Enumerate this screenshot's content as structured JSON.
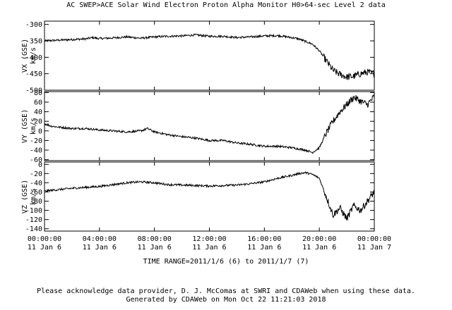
{
  "title": "AC  SWEP>ACE Solar Wind Electron Proton Alpha Monitor  H0>64-sec Level 2 data",
  "time_range": "TIME RANGE=2011/1/6 (6) to 2011/1/7 (7)",
  "acknowledgement": "Please acknowledge data provider, D. J. McComas at SWRI and CDAWeb when using these data.",
  "generated": "Generated by CDAWeb on Mon Oct 22 11:21:03 2018",
  "chart_data": [
    {
      "type": "line",
      "ylabel": "VX (GSE)",
      "yunit": "km/s",
      "ylim": [
        -500,
        -290
      ],
      "inverted": true,
      "yticks": [
        -300,
        -350,
        -400,
        -450,
        -500
      ],
      "ytick_labels": [
        "-300",
        "-350",
        "-400",
        "-450",
        "-500"
      ],
      "series": [
        {
          "x": [
            0,
            1,
            2,
            3,
            3.5,
            4,
            5,
            6,
            7,
            8,
            9,
            10,
            11,
            12,
            13,
            14,
            15,
            16,
            17,
            18,
            18.5,
            19,
            19.5,
            20,
            20.5,
            21,
            21.5,
            22,
            22.5,
            23,
            23.5,
            24
          ],
          "y": [
            -350,
            -348,
            -346,
            -344,
            -340,
            -343,
            -341,
            -338,
            -342,
            -338,
            -336,
            -335,
            -332,
            -336,
            -336,
            -340,
            -338,
            -335,
            -334,
            -340,
            -344,
            -352,
            -360,
            -380,
            -410,
            -440,
            -452,
            -460,
            -458,
            -450,
            -445,
            -450
          ]
        }
      ]
    },
    {
      "type": "line",
      "ylabel": "VY (GSE)",
      "yunit": "km/s",
      "ylim": [
        -62,
        82
      ],
      "inverted": false,
      "yticks": [
        80,
        60,
        40,
        20,
        0,
        -20,
        -40,
        -60
      ],
      "ytick_labels": [
        "80",
        "60",
        "40",
        "20",
        "0",
        "-20",
        "-40",
        "-60"
      ],
      "series": [
        {
          "x": [
            0,
            0.5,
            1,
            2,
            3,
            4,
            5,
            6,
            7,
            7.5,
            8,
            9,
            10,
            11,
            12,
            13,
            14,
            15,
            16,
            17,
            18,
            19,
            19.5,
            20,
            20.5,
            21,
            21.5,
            22,
            22.5,
            23,
            23.5,
            24
          ],
          "y": [
            15,
            10,
            8,
            5,
            5,
            2,
            0,
            -2,
            0,
            5,
            -2,
            -8,
            -12,
            -15,
            -20,
            -20,
            -25,
            -28,
            -32,
            -32,
            -35,
            -40,
            -45,
            -35,
            -5,
            20,
            40,
            55,
            70,
            62,
            55,
            72
          ]
        }
      ]
    },
    {
      "type": "line",
      "ylabel": "VZ (GSE)",
      "yunit": "km/s",
      "ylim": [
        -145,
        5
      ],
      "inverted": false,
      "yticks": [
        0,
        -20,
        -40,
        -60,
        -80,
        -100,
        -120,
        -140
      ],
      "ytick_labels": [
        "0",
        "-20",
        "-40",
        "-60",
        "-80",
        "-100",
        "-120",
        "-140"
      ],
      "series": [
        {
          "x": [
            0,
            1,
            2,
            3,
            4,
            5,
            6,
            7,
            8,
            9,
            10,
            11,
            12,
            13,
            14,
            15,
            16,
            17,
            18,
            18.5,
            19,
            19.5,
            20,
            20.5,
            21,
            21.5,
            22,
            22.5,
            23,
            23.5,
            24
          ],
          "y": [
            -58,
            -55,
            -52,
            -50,
            -48,
            -44,
            -40,
            -38,
            -40,
            -44,
            -45,
            -46,
            -47,
            -46,
            -45,
            -42,
            -38,
            -30,
            -24,
            -20,
            -18,
            -22,
            -30,
            -70,
            -110,
            -95,
            -118,
            -90,
            -100,
            -80,
            -60
          ]
        }
      ]
    }
  ],
  "x_axis": {
    "range_hours": [
      0,
      24
    ],
    "ticks": [
      0,
      4,
      8,
      12,
      16,
      20,
      24
    ],
    "tick_times": [
      "00:00:00",
      "04:00:00",
      "08:00:00",
      "12:00:00",
      "16:00:00",
      "20:00:00",
      "00:00:00"
    ],
    "tick_dates": [
      "11 Jan  6",
      "11 Jan  6",
      "11 Jan  6",
      "11 Jan  6",
      "11 Jan  6",
      "11 Jan  6",
      "11 Jan  7"
    ]
  }
}
